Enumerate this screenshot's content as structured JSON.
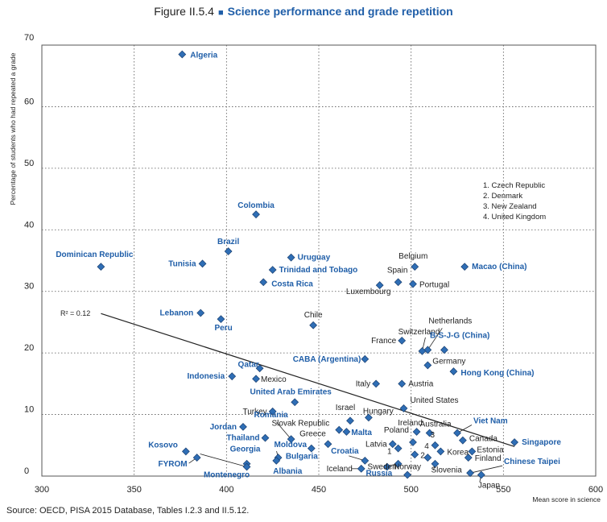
{
  "figure": {
    "prefix": "Figure II.5.4",
    "bullet": "■",
    "title": "Science performance and grade repetition"
  },
  "source": "Source: OECD, PISA 2015 Database, Tables I.2.3 and II.5.12.",
  "chart_data": {
    "type": "scatter",
    "xlabel": "Mean score in science",
    "ylabel": "Percentage of students who had repeated a grade",
    "xlim": [
      300,
      600
    ],
    "ylim": [
      0,
      70
    ],
    "xticks": [
      300,
      350,
      400,
      450,
      500,
      550,
      600
    ],
    "yticks": [
      0,
      10,
      20,
      30,
      40,
      50,
      60,
      70
    ],
    "grid": true,
    "marker_color": "#2f6eb5",
    "oecd_label_color": "#222222",
    "partner_label_color": "#1f5ea8",
    "r2_label": "R² = 0.12",
    "trendline": {
      "x1": 332,
      "y1": 26.4,
      "x2": 556,
      "y2": 4.8
    },
    "notes": [
      "1. Czech Republic",
      "2. Denmark",
      "3. New Zealand",
      "4. United Kingdom"
    ],
    "points": [
      {
        "name": "Algeria",
        "x": 376,
        "y": 68.5,
        "oecd": false
      },
      {
        "name": "Colombia",
        "x": 416,
        "y": 42.5,
        "oecd": false
      },
      {
        "name": "Brazil",
        "x": 401,
        "y": 36.5,
        "oecd": false
      },
      {
        "name": "Dominican Republic",
        "x": 332,
        "y": 34,
        "oecd": false
      },
      {
        "name": "Tunisia",
        "x": 387,
        "y": 34.5,
        "oecd": false
      },
      {
        "name": "Uruguay",
        "x": 435,
        "y": 35.5,
        "oecd": false
      },
      {
        "name": "Trinidad and Tobago",
        "x": 425,
        "y": 33.5,
        "oecd": false
      },
      {
        "name": "Costa Rica",
        "x": 420,
        "y": 31.5,
        "oecd": false
      },
      {
        "name": "Belgium",
        "x": 502,
        "y": 34,
        "oecd": true
      },
      {
        "name": "Macao (China)",
        "x": 529,
        "y": 34,
        "oecd": false
      },
      {
        "name": "Spain",
        "x": 493,
        "y": 31.5,
        "oecd": true
      },
      {
        "name": "Portugal",
        "x": 501,
        "y": 31.2,
        "oecd": true
      },
      {
        "name": "Luxembourg",
        "x": 483,
        "y": 31,
        "oecd": true
      },
      {
        "name": "Lebanon",
        "x": 386,
        "y": 26.5,
        "oecd": false
      },
      {
        "name": "Peru",
        "x": 397,
        "y": 25.5,
        "oecd": false
      },
      {
        "name": "Chile",
        "x": 447,
        "y": 24.5,
        "oecd": true
      },
      {
        "name": "Netherlands",
        "x": 509,
        "y": 20.5,
        "oecd": true
      },
      {
        "name": "Switzerland",
        "x": 506,
        "y": 20.3,
        "oecd": true
      },
      {
        "name": "France",
        "x": 495,
        "y": 22,
        "oecd": true
      },
      {
        "name": "B-S-J-G (China)",
        "x": 518,
        "y": 20.5,
        "oecd": false
      },
      {
        "name": "CABA (Argentina)",
        "x": 475,
        "y": 19,
        "oecd": false
      },
      {
        "name": "Germany",
        "x": 509,
        "y": 18,
        "oecd": true
      },
      {
        "name": "Hong Kong (China)",
        "x": 523,
        "y": 17,
        "oecd": false
      },
      {
        "name": "Qatar",
        "x": 418,
        "y": 17.5,
        "oecd": false
      },
      {
        "name": "Indonesia",
        "x": 403,
        "y": 16.2,
        "oecd": false
      },
      {
        "name": "Mexico",
        "x": 416,
        "y": 15.8,
        "oecd": true
      },
      {
        "name": "Italy",
        "x": 481,
        "y": 15,
        "oecd": true
      },
      {
        "name": "Austria",
        "x": 495,
        "y": 15,
        "oecd": true
      },
      {
        "name": "United Arab Emirates",
        "x": 437,
        "y": 12,
        "oecd": false
      },
      {
        "name": "United States",
        "x": 496,
        "y": 11,
        "oecd": true
      },
      {
        "name": "Turkey",
        "x": 425,
        "y": 10.5,
        "oecd": true
      },
      {
        "name": "Israel",
        "x": 467,
        "y": 9,
        "oecd": true
      },
      {
        "name": "Hungary",
        "x": 477,
        "y": 9.5,
        "oecd": true
      },
      {
        "name": "Slovak Republic",
        "x": 461,
        "y": 7.5,
        "oecd": true
      },
      {
        "name": "Malta",
        "x": 465,
        "y": 7.2,
        "oecd": false
      },
      {
        "name": "Viet Nam",
        "x": 525,
        "y": 7,
        "oecd": false
      },
      {
        "name": "Ireland",
        "x": 503,
        "y": 7.2,
        "oecd": true
      },
      {
        "name": "Australia",
        "x": 510,
        "y": 7,
        "oecd": true
      },
      {
        "name": "Romania",
        "x": 435,
        "y": 6,
        "oecd": false
      },
      {
        "name": "Jordan",
        "x": 409,
        "y": 8,
        "oecd": false
      },
      {
        "name": "Thailand",
        "x": 421,
        "y": 6.2,
        "oecd": false
      },
      {
        "name": "Greece",
        "x": 455,
        "y": 5.2,
        "oecd": true
      },
      {
        "name": "Latvia",
        "x": 490,
        "y": 5.2,
        "oecd": true
      },
      {
        "name": "Poland",
        "x": 501,
        "y": 5.5,
        "oecd": true
      },
      {
        "name": "Canada",
        "x": 528,
        "y": 5.8,
        "oecd": true
      },
      {
        "name": "Singapore",
        "x": 556,
        "y": 5.5,
        "oecd": false
      },
      {
        "name": "Kosovo",
        "x": 378,
        "y": 4,
        "oecd": false
      },
      {
        "name": "Moldova",
        "x": 428,
        "y": 3,
        "oecd": false
      },
      {
        "name": "Bulgaria",
        "x": 446,
        "y": 4.5,
        "oecd": false
      },
      {
        "name": "Georgia",
        "x": 411,
        "y": 2,
        "oecd": false
      },
      {
        "name": "Croatia",
        "x": 475,
        "y": 2.5,
        "oecd": false
      },
      {
        "name": "1",
        "x": 493,
        "y": 4.5,
        "oecd": true
      },
      {
        "name": "2",
        "x": 502,
        "y": 3.5,
        "oecd": true
      },
      {
        "name": "3",
        "x": 513,
        "y": 5,
        "oecd": true
      },
      {
        "name": "4",
        "x": 509,
        "y": 3,
        "oecd": true
      },
      {
        "name": "Korea",
        "x": 516,
        "y": 4,
        "oecd": true
      },
      {
        "name": "Estonia",
        "x": 533,
        "y": 4,
        "oecd": true
      },
      {
        "name": "Finland",
        "x": 531,
        "y": 3,
        "oecd": true
      },
      {
        "name": "Sweden",
        "x": 493,
        "y": 2,
        "oecd": true
      },
      {
        "name": "Iceland",
        "x": 473,
        "y": 1.2,
        "oecd": true
      },
      {
        "name": "FYROM",
        "x": 384,
        "y": 3,
        "oecd": false
      },
      {
        "name": "Montenegro",
        "x": 411,
        "y": 1.5,
        "oecd": false
      },
      {
        "name": "Albania",
        "x": 427,
        "y": 2.5,
        "oecd": false
      },
      {
        "name": "Russia",
        "x": 487,
        "y": 1.5,
        "oecd": false
      },
      {
        "name": "Norway",
        "x": 498,
        "y": 0.2,
        "oecd": true
      },
      {
        "name": "Slovenia",
        "x": 513,
        "y": 2,
        "oecd": true
      },
      {
        "name": "Japan",
        "x": 538,
        "y": 0.2,
        "oecd": true
      },
      {
        "name": "Chinese Taipei",
        "x": 532,
        "y": 0.5,
        "oecd": false
      }
    ]
  }
}
